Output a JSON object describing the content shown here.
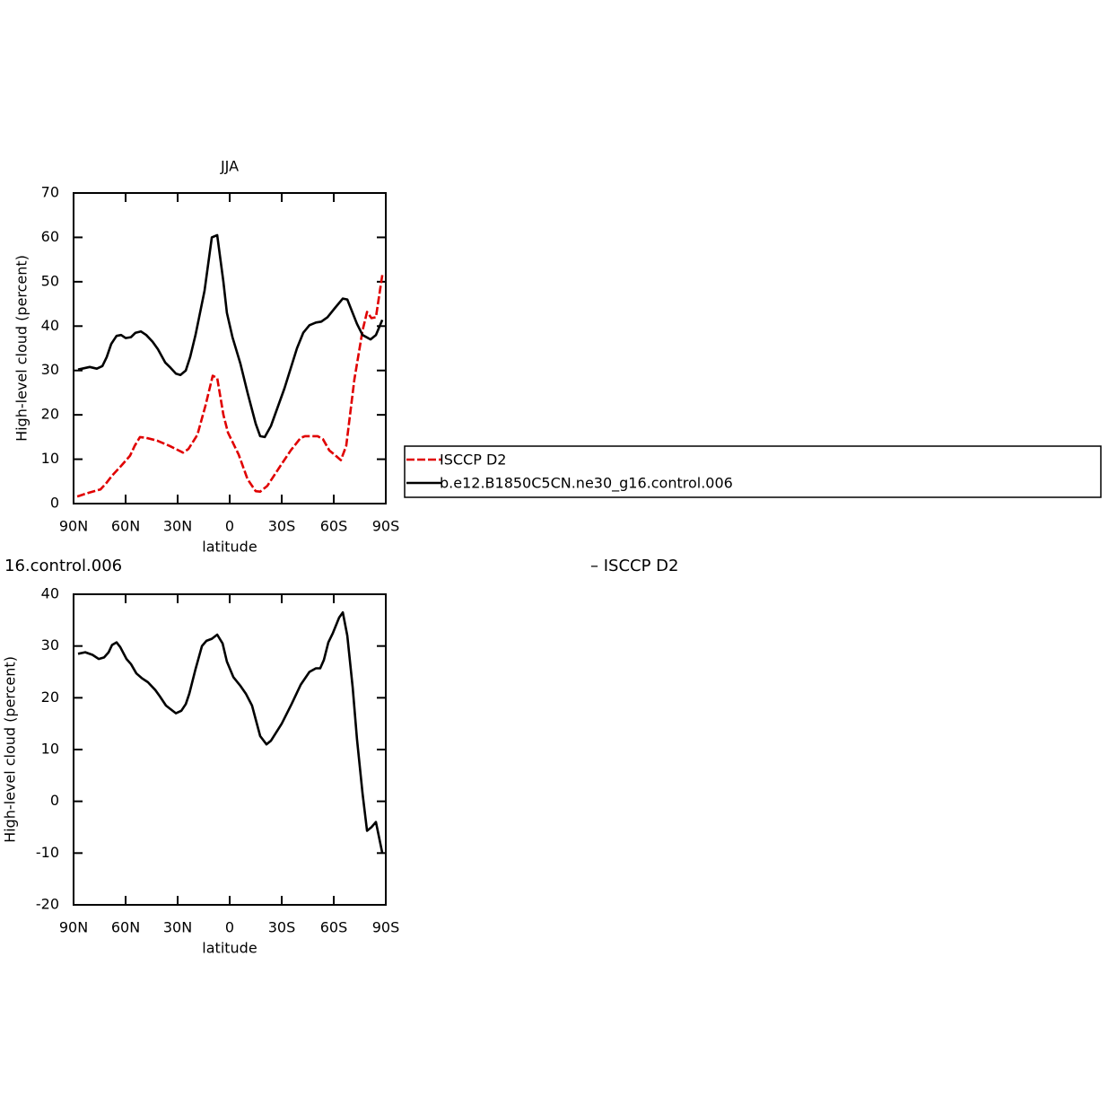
{
  "chart_data": [
    {
      "type": "line",
      "title": "JJA",
      "xlabel": "latitude",
      "ylabel": "High-level cloud (percent)",
      "xlim": [
        90,
        -90
      ],
      "xticks": [
        {
          "value": 90,
          "label": "90N"
        },
        {
          "value": 60,
          "label": "60N"
        },
        {
          "value": 30,
          "label": "30N"
        },
        0,
        {
          "value": -30,
          "label": "30S"
        },
        {
          "value": -60,
          "label": "60S"
        },
        {
          "value": -90,
          "label": "90S"
        }
      ],
      "ylim": [
        0,
        70
      ],
      "yticks": [
        0,
        10,
        20,
        30,
        40,
        50,
        60,
        70
      ],
      "series": [
        {
          "name": "ISCCP D2",
          "color": "#e00000",
          "linestyle": "dashed",
          "x": [
            87.9,
            84.8,
            80.7,
            74.5,
            71.4,
            67.8,
            62.6,
            57.4,
            54.8,
            51.7,
            48.1,
            41.9,
            34.7,
            26.9,
            23.8,
            18.6,
            14,
            9.8,
            7.2,
            3.6,
            1,
            -5.2,
            -10.3,
            -15,
            -17.6,
            -21.7,
            -28.4,
            -35.2,
            -40.9,
            -43.4,
            -50.7,
            -53.8,
            -57.4,
            -60.5,
            -64.1,
            -67.2,
            -71.9,
            -76.6,
            -79.2,
            -81.7,
            -84.3,
            -88
          ],
          "values": [
            1.6,
            2,
            2.5,
            3.2,
            4.5,
            6.3,
            8.5,
            10.8,
            13,
            15,
            14.8,
            14.2,
            13,
            11.5,
            12.3,
            15.5,
            22,
            28.8,
            28.3,
            20,
            16,
            11,
            5.5,
            2.8,
            2.7,
            4,
            8,
            12,
            14.8,
            15.2,
            15.2,
            14.5,
            12,
            11,
            9.8,
            13,
            28,
            39,
            43.2,
            41.8,
            42,
            51.5
          ]
        },
        {
          "name": "b.e12.B1850C5CN.ne30_g16.control.006",
          "color": "#000000",
          "linestyle": "solid",
          "x": [
            87.4,
            80.7,
            76.6,
            73.4,
            70.9,
            68.3,
            65.2,
            62.6,
            60,
            56.9,
            54.3,
            51.2,
            48.1,
            44.5,
            41.4,
            37.2,
            34.1,
            31,
            28.4,
            25.3,
            22.8,
            19.7,
            14.5,
            10.3,
            7.2,
            3.6,
            1.6,
            -1.6,
            -6.2,
            -10.3,
            -15,
            -17.6,
            -20.2,
            -23.8,
            -31.6,
            -38.8,
            -42.4,
            -46,
            -49.7,
            -52.8,
            -56.4,
            -60.5,
            -65.2,
            -67.8,
            -73.4,
            -76.6,
            -81.2,
            -84.3,
            -88
          ],
          "values": [
            30.2,
            30.8,
            30.4,
            31,
            33,
            36,
            37.8,
            38,
            37.3,
            37.5,
            38.5,
            38.8,
            38,
            36.5,
            34.8,
            31.8,
            30.6,
            29.3,
            29,
            30,
            33,
            38,
            48,
            60,
            60.5,
            50,
            43,
            37.5,
            31.5,
            25,
            18,
            15.2,
            15,
            17.5,
            26,
            35,
            38.5,
            40.2,
            40.8,
            41,
            42,
            44,
            46.2,
            46,
            40.5,
            38,
            37,
            38,
            41.4
          ]
        }
      ]
    },
    {
      "type": "line",
      "title_left": "16.control.006",
      "title_right": "– ISCCP D2",
      "xlabel": "latitude",
      "ylabel": "High-level cloud (percent)",
      "xlim": [
        90,
        -90
      ],
      "xticks": [
        {
          "value": 90,
          "label": "90N"
        },
        {
          "value": 60,
          "label": "60N"
        },
        {
          "value": 30,
          "label": "30N"
        },
        0,
        {
          "value": -30,
          "label": "30S"
        },
        {
          "value": -60,
          "label": "60S"
        },
        {
          "value": -90,
          "label": "90S"
        }
      ],
      "ylim": [
        -20,
        40
      ],
      "yticks": [
        -20,
        -10,
        0,
        10,
        20,
        30,
        40
      ],
      "series": [
        {
          "color": "#000000",
          "linestyle": "solid",
          "x": [
            87.4,
            83.3,
            79.1,
            75.5,
            72.4,
            69.8,
            67.8,
            65.2,
            63.1,
            59.5,
            56.9,
            53.8,
            50.7,
            47.1,
            42.9,
            40.3,
            36.7,
            34.1,
            31,
            27.9,
            25.3,
            23.3,
            19.7,
            16,
            13.4,
            10.3,
            7.2,
            4.1,
            1.6,
            -2.1,
            -6.2,
            -9.3,
            -12.9,
            -17.6,
            -21.2,
            -23.8,
            -30,
            -35.7,
            -40.9,
            -46,
            -49.7,
            -52.2,
            -54.3,
            -56.9,
            -59.5,
            -63.1,
            -65.2,
            -67.8,
            -70.9,
            -73.4,
            -76.6,
            -79.2,
            -81.7,
            -84.3,
            -88
          ],
          "values": [
            28.5,
            28.8,
            28.3,
            27.5,
            27.8,
            28.8,
            30.2,
            30.7,
            29.8,
            27.5,
            26.5,
            24.7,
            23.8,
            23,
            21.5,
            20.3,
            18.5,
            17.8,
            17,
            17.5,
            18.8,
            20.8,
            25.5,
            30,
            31,
            31.4,
            32.2,
            30.5,
            27,
            24,
            22.3,
            20.8,
            18.5,
            12.6,
            11,
            11.7,
            15,
            18.8,
            22.5,
            25,
            25.7,
            25.7,
            27.3,
            30.7,
            32.5,
            35.5,
            36.5,
            32,
            22,
            12,
            1.5,
            -5.7,
            -5,
            -4,
            -10
          ]
        }
      ]
    }
  ]
}
